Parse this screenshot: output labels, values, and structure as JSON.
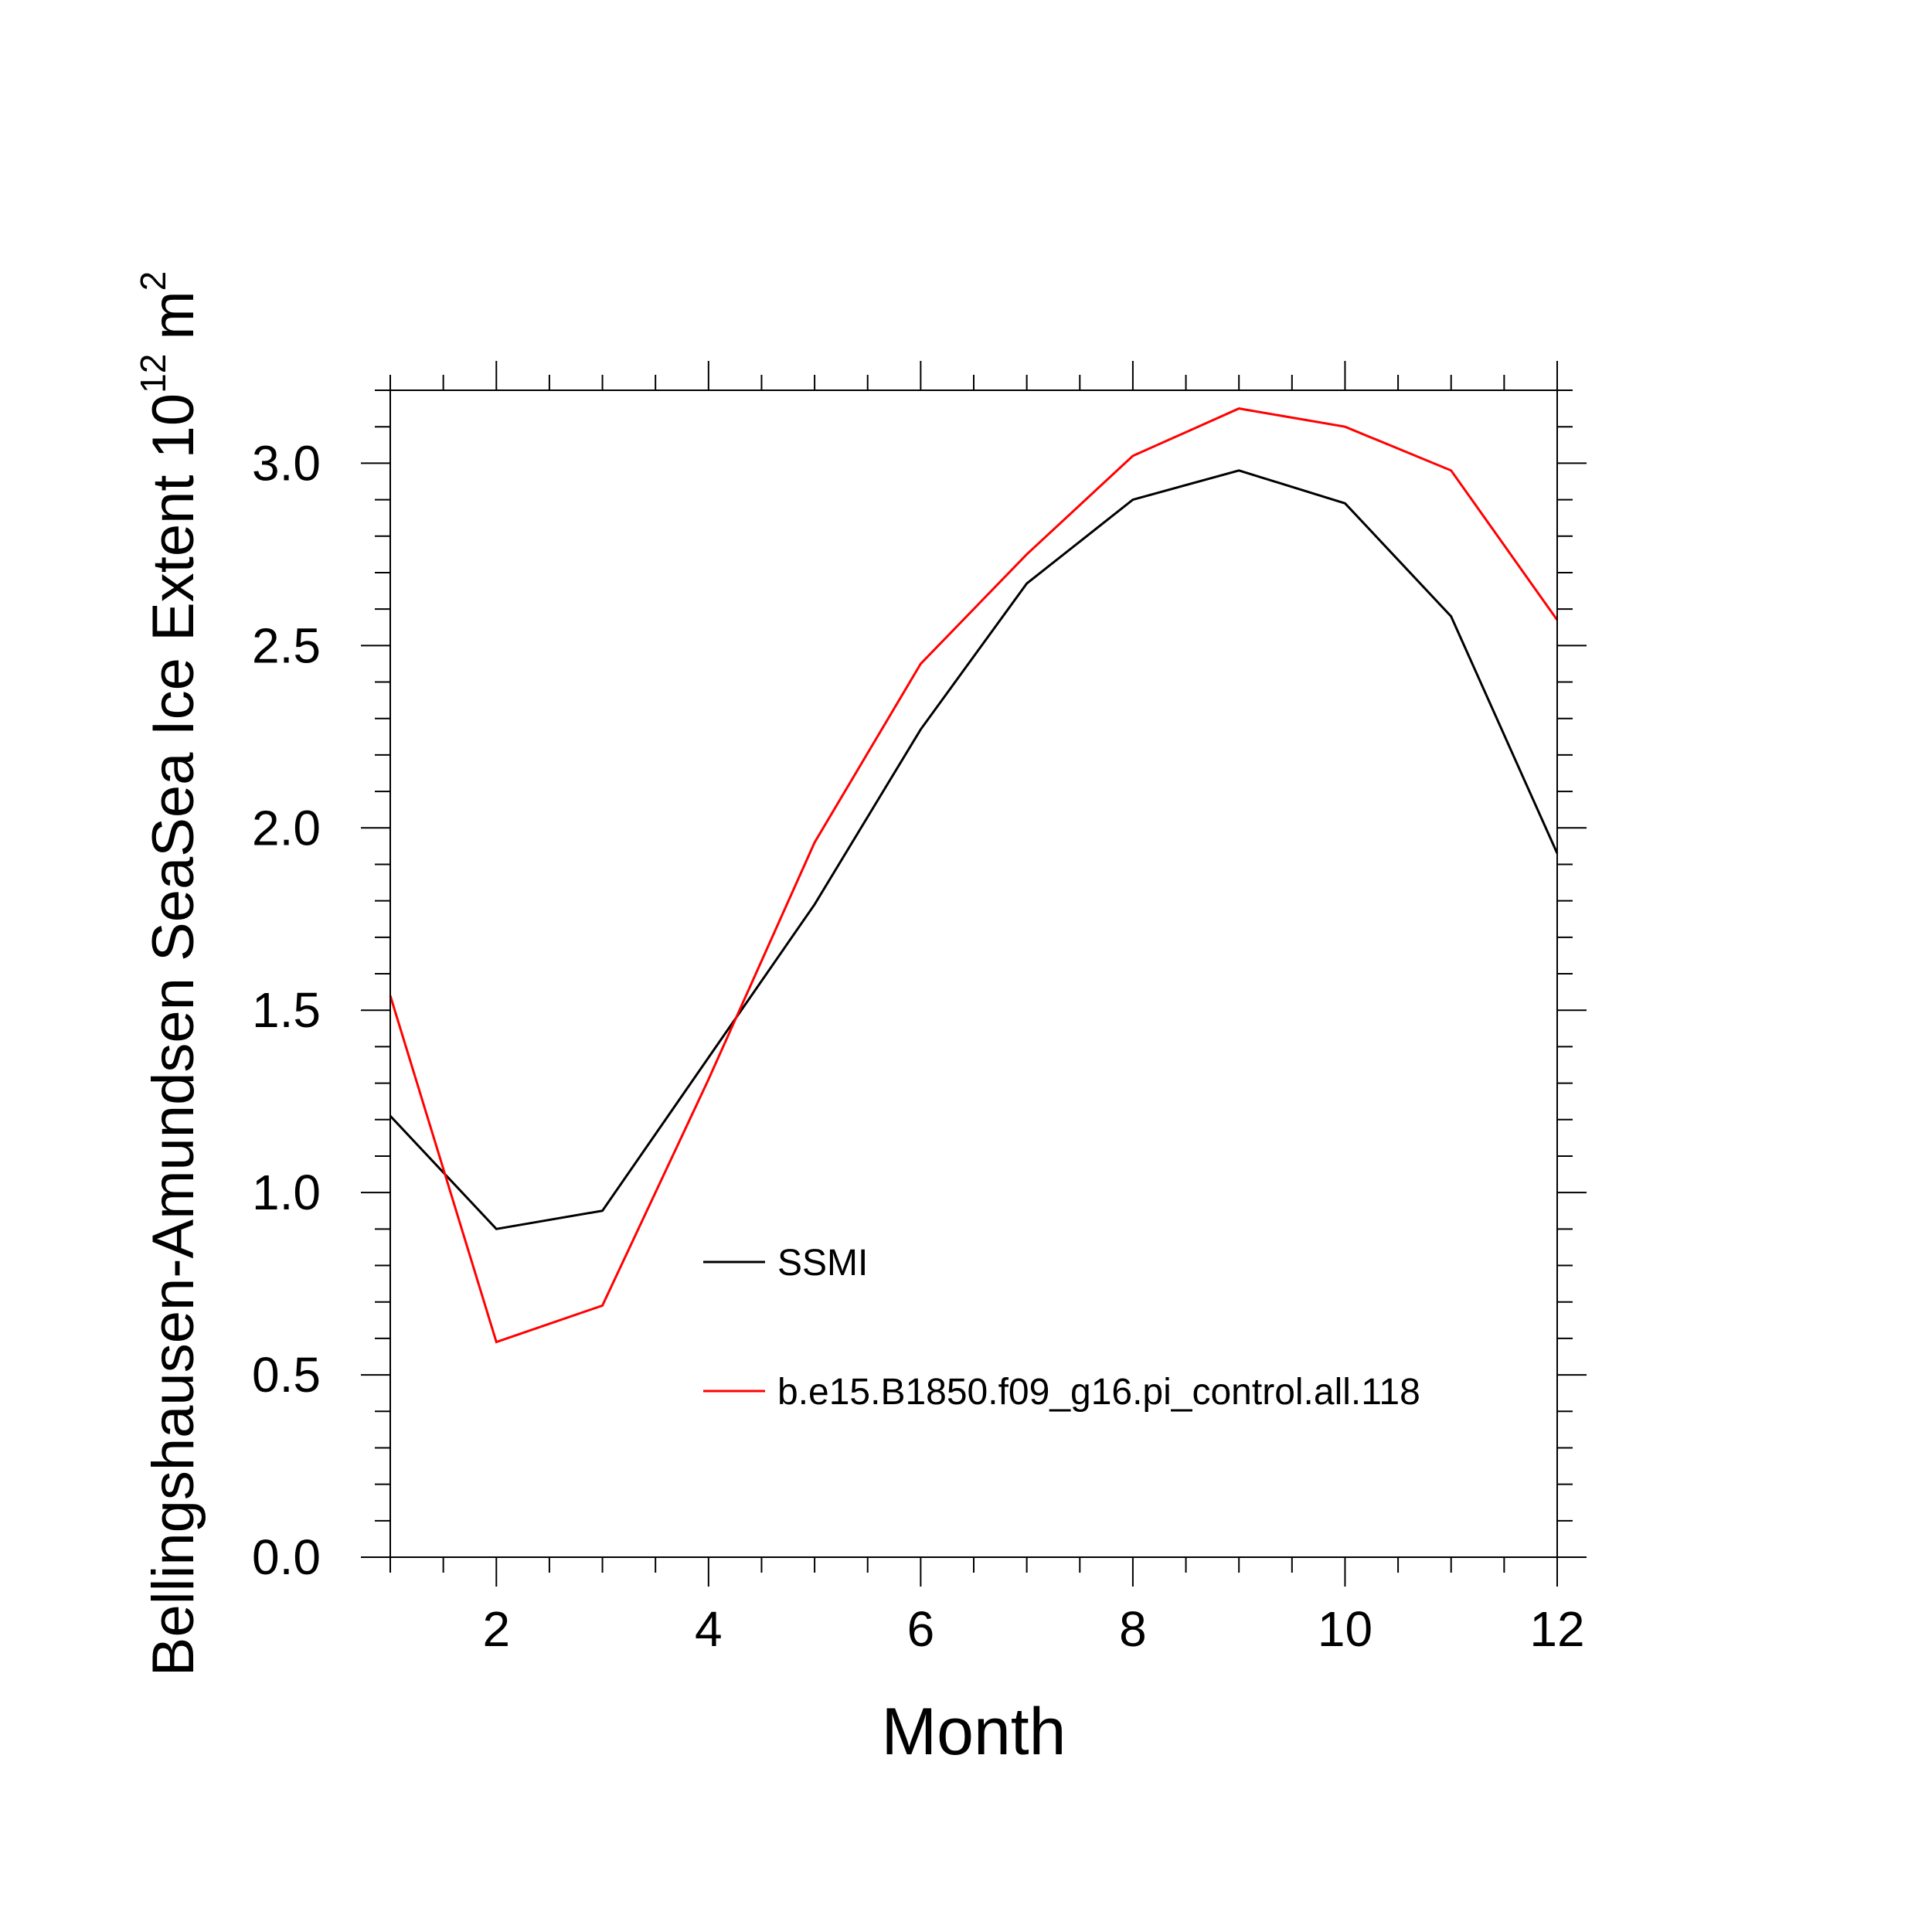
{
  "chart_data": {
    "type": "line",
    "title": "",
    "xlabel": "Month",
    "ylabel": {
      "main": "Bellingshausen-Amundsen SeaSea Ice Extent 10",
      "exponent": "12",
      "unit": "m",
      "unit_exponent": "2"
    },
    "x": [
      1,
      2,
      3,
      4,
      5,
      6,
      7,
      8,
      9,
      10,
      11,
      12
    ],
    "xlim": [
      1,
      12
    ],
    "ylim": [
      0,
      3.2
    ],
    "x_ticks": [
      2,
      4,
      6,
      8,
      10,
      12
    ],
    "x_tick_labels": [
      "2",
      "4",
      "6",
      "8",
      "10",
      "12"
    ],
    "y_ticks": [
      0,
      0.5,
      1,
      1.5,
      2,
      2.5,
      3
    ],
    "y_tick_labels": [
      "0.0",
      "0.5",
      "1.0",
      "1.5",
      "2.0",
      "2.5",
      "3.0"
    ],
    "grid": false,
    "legend_position": "center",
    "series": [
      {
        "name": "SSMI",
        "color": "#000000",
        "values": [
          1.21,
          0.9,
          0.95,
          1.37,
          1.79,
          2.27,
          2.67,
          2.9,
          2.98,
          2.89,
          2.58,
          1.93
        ]
      },
      {
        "name": "b.e15.B1850.f09_g16.pi_control.all.118",
        "color": "#ff0000",
        "values": [
          1.54,
          0.59,
          0.69,
          1.31,
          1.96,
          2.45,
          2.75,
          3.02,
          3.15,
          3.1,
          2.98,
          2.57
        ]
      }
    ]
  }
}
